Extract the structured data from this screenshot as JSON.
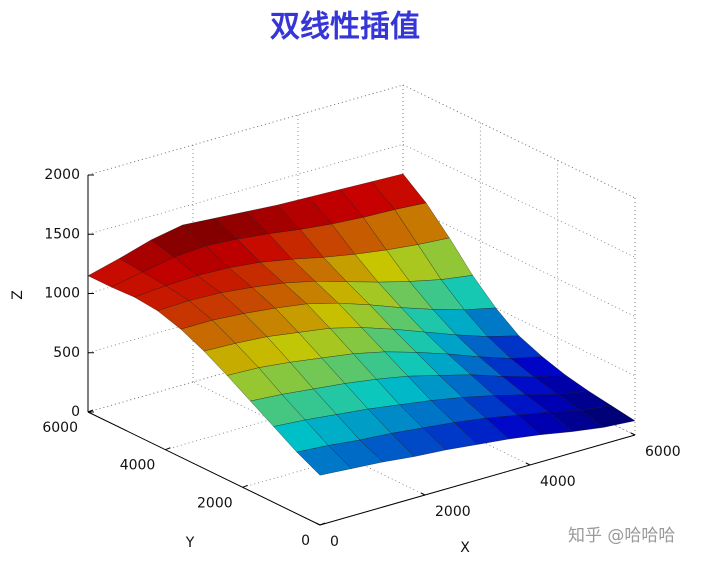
{
  "chart_data": {
    "type": "surface",
    "title": "双线性插值",
    "x_label": "X",
    "y_label": "Y",
    "z_label": "Z",
    "watermark": "知乎 @哈哈哈",
    "x": [
      0,
      600,
      1200,
      1800,
      2400,
      3000,
      3600,
      4200,
      4800,
      5400,
      6000
    ],
    "y": [
      0,
      600,
      1200,
      1800,
      2400,
      3000,
      3600,
      4200,
      4800,
      5400,
      6000
    ],
    "z": [
      [
        420,
        400,
        380,
        350,
        330,
        300,
        270,
        230,
        180,
        140,
        120
      ],
      [
        520,
        500,
        470,
        450,
        420,
        390,
        350,
        300,
        250,
        190,
        150
      ],
      [
        640,
        620,
        590,
        560,
        520,
        480,
        430,
        370,
        300,
        230,
        180
      ],
      [
        760,
        740,
        710,
        680,
        640,
        590,
        520,
        450,
        360,
        280,
        220
      ],
      [
        880,
        870,
        840,
        800,
        760,
        700,
        620,
        530,
        430,
        340,
        280
      ],
      [
        990,
        980,
        960,
        920,
        880,
        810,
        720,
        620,
        520,
        430,
        360
      ],
      [
        1080,
        1080,
        1060,
        1030,
        990,
        920,
        830,
        730,
        640,
        560,
        500
      ],
      [
        1140,
        1150,
        1140,
        1110,
        1070,
        1010,
        930,
        850,
        780,
        720,
        680
      ],
      [
        1160,
        1180,
        1190,
        1180,
        1150,
        1100,
        1040,
        990,
        950,
        920,
        900
      ],
      [
        1150,
        1200,
        1250,
        1270,
        1250,
        1220,
        1180,
        1150,
        1130,
        1120,
        1100
      ],
      [
        1150,
        1220,
        1300,
        1350,
        1330,
        1310,
        1290,
        1280,
        1270,
        1260,
        1250
      ]
    ],
    "xlim": [
      0,
      6000
    ],
    "ylim": [
      0,
      6000
    ],
    "zlim": [
      0,
      2000
    ],
    "xticks": [
      0,
      2000,
      4000,
      6000
    ],
    "yticks": [
      0,
      2000,
      4000,
      6000
    ],
    "zticks": [
      0,
      500,
      1000,
      1500,
      2000
    ],
    "grid": true,
    "colormap": "jet"
  }
}
